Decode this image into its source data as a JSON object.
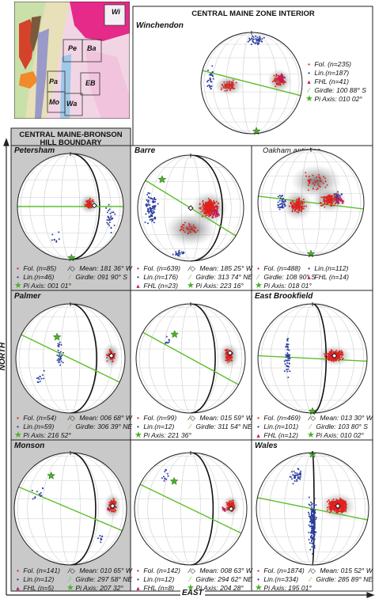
{
  "zones": {
    "interior": "CENTRAL MAINE ZONE INTERIOR",
    "boundary_line1": "CENTRAL MAINE-BRONSON",
    "boundary_line2": "HILL BOUNDARY"
  },
  "axes": {
    "north": "NORTH",
    "east": "EAST"
  },
  "map_labels": {
    "wi": "Wi",
    "pe": "Pe",
    "ba": "Ba",
    "pa": "Pa",
    "eb": "EB",
    "mo": "Mo",
    "wa": "Wa"
  },
  "colors": {
    "foliation": "#e0201b",
    "lineation": "#2b3fa0",
    "fhl": "#c2185b",
    "girdle": "#5cbf2a",
    "mean": "#111111",
    "pi_axis": "#4caf2a",
    "boundary_bg": "#c8c8c8"
  },
  "panels": [
    {
      "id": "winchendon",
      "title": "Winchendon",
      "subtitle": "",
      "legend": [
        {
          "sym": "fol",
          "text": "Fol. (n=235)"
        },
        {
          "sym": "lin",
          "text": "Lin.(n=187)"
        },
        {
          "sym": "fhl",
          "text": "FHL (n=41)"
        },
        {
          "sym": "girdle",
          "text": "Girdle: 100 88° S"
        },
        {
          "sym": "pi",
          "text": "Pi Axis: 010 02°"
        }
      ]
    },
    {
      "id": "petersham",
      "title": "Petersham",
      "subtitle": "",
      "legend": [
        {
          "sym": "fol",
          "text": "Fol. (n=85)"
        },
        {
          "sym": "mean",
          "text": "Mean: 181 36° W"
        },
        {
          "sym": "lin",
          "text": "Lin.(n=46)"
        },
        {
          "sym": "girdle",
          "text": "Girdle: 091 90° S"
        },
        {
          "sym": "pi",
          "text": "Pi Axis: 001 01°"
        }
      ]
    },
    {
      "id": "barre",
      "title": "Barre",
      "subtitle": "",
      "legend": [
        {
          "sym": "fol",
          "text": "Fol. (n=639)"
        },
        {
          "sym": "mean",
          "text": "Mean: 185 25° W"
        },
        {
          "sym": "lin",
          "text": "Lin.(n=176)"
        },
        {
          "sym": "girdle",
          "text": "Girdle: 313 74° NE"
        },
        {
          "sym": "fhl",
          "text": "FHL (n=23)"
        },
        {
          "sym": "pi",
          "text": "Pi Axis: 223 16°"
        }
      ]
    },
    {
      "id": "oakham",
      "title": "",
      "subtitle": "Oakham anticline",
      "legend": [
        {
          "sym": "fol",
          "text": "Fol. (n=488)"
        },
        {
          "sym": "lin",
          "text": "Lin.(n=112)"
        },
        {
          "sym": "girdle",
          "text": "Girdle: 108 90° S"
        },
        {
          "sym": "fhl",
          "text": "FHL (n=14)"
        },
        {
          "sym": "pi",
          "text": "Pi Axis: 018 01°"
        }
      ]
    },
    {
      "id": "palmer",
      "title": "Palmer",
      "subtitle": "",
      "legend": [
        {
          "sym": "fol",
          "text": "Fol. (n=54)"
        },
        {
          "sym": "mean",
          "text": "Mean: 006 68° W"
        },
        {
          "sym": "lin",
          "text": "Lin.(n=59)"
        },
        {
          "sym": "girdle",
          "text": "Girdle: 306 39° NE"
        },
        {
          "sym": "pi",
          "text": "Pi Axis: 216 52°"
        }
      ]
    },
    {
      "id": "center2",
      "title": "",
      "subtitle": "",
      "legend": [
        {
          "sym": "fol",
          "text": "Fol. (n=99)"
        },
        {
          "sym": "mean",
          "text": "Mean: 015 59° W"
        },
        {
          "sym": "lin",
          "text": "Lin.(n=12)"
        },
        {
          "sym": "girdle",
          "text": "Girdle: 311 54° NE"
        },
        {
          "sym": "pi",
          "text": "Pi Axis: 221 36°"
        }
      ]
    },
    {
      "id": "eastbrookfield",
      "title": "East Brookfield",
      "subtitle": "",
      "legend": [
        {
          "sym": "fol",
          "text": "Fol. (n=469)"
        },
        {
          "sym": "mean",
          "text": "Mean: 013 30° W"
        },
        {
          "sym": "lin",
          "text": "Lin.(n=101)"
        },
        {
          "sym": "girdle",
          "text": "Girdle: 103 80° S"
        },
        {
          "sym": "fhl",
          "text": "FHL (n=12)"
        },
        {
          "sym": "pi",
          "text": "Pi Axis: 010 02°"
        }
      ]
    },
    {
      "id": "monson",
      "title": "Monson",
      "subtitle": "",
      "legend": [
        {
          "sym": "fol",
          "text": "Fol. (n=141)"
        },
        {
          "sym": "mean",
          "text": "Mean: 010 65° W"
        },
        {
          "sym": "lin",
          "text": "Lin.(n=12)"
        },
        {
          "sym": "girdle",
          "text": "Girdle: 297 58° NE"
        },
        {
          "sym": "fhl",
          "text": "FHL (n=5)"
        },
        {
          "sym": "pi",
          "text": "Pi Axis: 207 32°"
        }
      ]
    },
    {
      "id": "center3",
      "title": "",
      "subtitle": "",
      "legend": [
        {
          "sym": "fol",
          "text": "Fol. (n=142)"
        },
        {
          "sym": "mean",
          "text": "Mean: 008 63° W"
        },
        {
          "sym": "lin",
          "text": "Lin.(n=12)"
        },
        {
          "sym": "girdle",
          "text": "Girdle: 294 62° NE"
        },
        {
          "sym": "fhl",
          "text": "FHL (n=8)"
        },
        {
          "sym": "pi",
          "text": "Pi Axis: 204 28°"
        }
      ]
    },
    {
      "id": "wales",
      "title": "Wales",
      "subtitle": "",
      "legend": [
        {
          "sym": "fol",
          "text": "Fol. (n=1874)"
        },
        {
          "sym": "mean",
          "text": "Mean: 015 52° W"
        },
        {
          "sym": "lin",
          "text": "Lin.(n=334)"
        },
        {
          "sym": "girdle",
          "text": "Girdle: 285 89° NE"
        },
        {
          "sym": "pi",
          "text": "Pi Axis: 195 01°"
        }
      ]
    }
  ]
}
